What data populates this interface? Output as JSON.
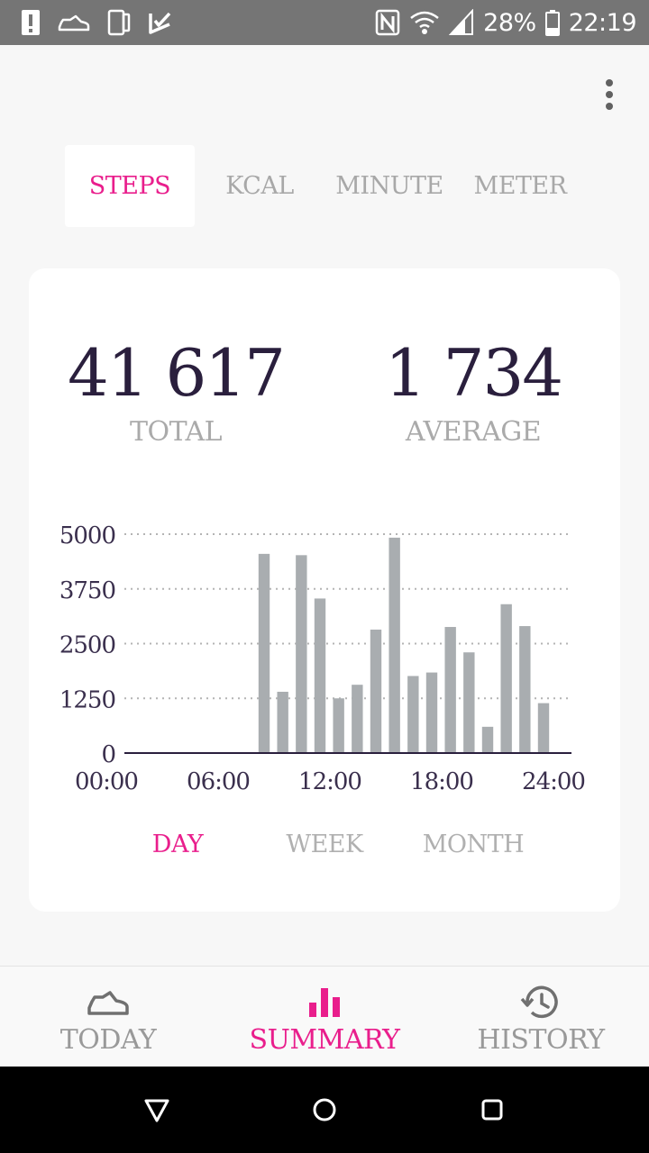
{
  "status_bar": {
    "icons_left": [
      "alert-icon",
      "shoe-icon",
      "phone-icon",
      "inbox-check-icon"
    ],
    "icons_right": [
      "nfc-icon",
      "wifi-icon",
      "signal-icon",
      "battery-icon"
    ],
    "battery": "28%",
    "time": "22:19"
  },
  "metric_tabs": [
    {
      "label": "STEPS",
      "active": true
    },
    {
      "label": "KCAL",
      "active": false
    },
    {
      "label": "MINUTE",
      "active": false
    },
    {
      "label": "METER",
      "active": false
    }
  ],
  "summary": {
    "total_value": "41 617",
    "total_label": "TOTAL",
    "average_value": "1 734",
    "average_label": "AVERAGE"
  },
  "chart_data": {
    "type": "bar",
    "y_ticks": [
      "5000",
      "3750",
      "2500",
      "1250",
      "0"
    ],
    "x_ticks": [
      "00:00",
      "06:00",
      "12:00",
      "18:00",
      "24:00"
    ],
    "ylim": [
      0,
      5000
    ],
    "xlim": [
      0,
      24
    ],
    "grid": true,
    "categories": [
      "0",
      "1",
      "2",
      "3",
      "4",
      "5",
      "6",
      "7",
      "8",
      "9",
      "10",
      "11",
      "12",
      "13",
      "14",
      "15",
      "16",
      "17",
      "18",
      "19",
      "20",
      "21",
      "22",
      "23"
    ],
    "values": [
      0,
      0,
      0,
      0,
      0,
      0,
      0,
      4550,
      1400,
      4520,
      3530,
      1250,
      1560,
      2820,
      4920,
      1760,
      1840,
      2880,
      2300,
      600,
      3400,
      2900,
      1140,
      0
    ],
    "colors": {
      "bar": "#a9adb0",
      "axis": "#2a1f3d",
      "grid": "#b4b4b4",
      "tick": "#3a2f4d"
    }
  },
  "range_tabs": [
    {
      "label": "DAY",
      "active": true
    },
    {
      "label": "WEEK",
      "active": false
    },
    {
      "label": "MONTH",
      "active": false
    }
  ],
  "bottom_nav": [
    {
      "label": "TODAY",
      "icon": "shoe-icon",
      "active": false
    },
    {
      "label": "SUMMARY",
      "icon": "bar-chart-icon",
      "active": true
    },
    {
      "label": "HISTORY",
      "icon": "history-icon",
      "active": false
    }
  ],
  "system_nav": [
    "back-icon",
    "home-icon",
    "recents-icon"
  ],
  "colors": {
    "accent": "#e91e8c",
    "muted": "#a8a8a8",
    "dark": "#2a1f3d",
    "status_bar": "#757575"
  }
}
